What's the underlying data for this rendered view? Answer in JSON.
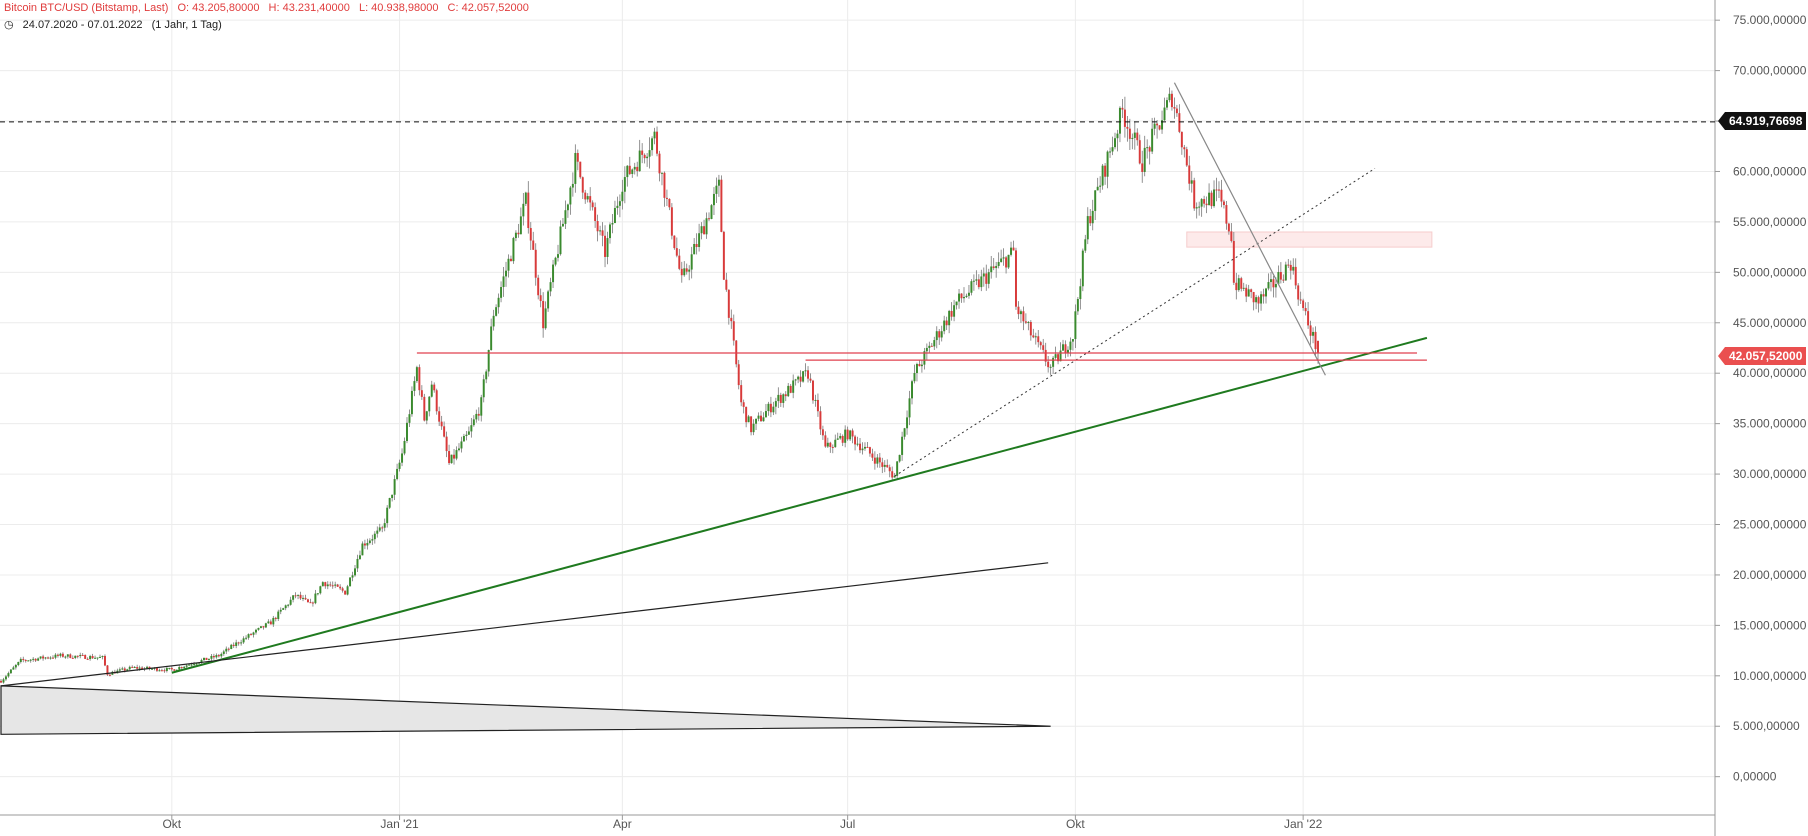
{
  "header": {
    "symbol_label": "Bitcoin BTC/USD (Bitstamp, Last)",
    "open": "O: 43.205,80000",
    "high": "H: 43.231,40000",
    "low": "L: 40.938,98000",
    "close": "C: 42.057,52000",
    "range": "24.07.2020 - 07.01.2022",
    "period": "(1 Jahr, 1 Tag)"
  },
  "price_tags": {
    "dashed_level": "64.919,76698",
    "last_price": "42.057,52000"
  },
  "colors": {
    "up_candle": "#3a8a2e",
    "down_candle": "#d83a3a",
    "support_line": "#1f7a1f",
    "horizontal_levels": "#e0404f",
    "grid": "#ececec"
  },
  "chart_data": {
    "type": "candlestick",
    "symbol": "Bitcoin BTC/USD (Bitstamp, Last)",
    "interval": "1 Tag",
    "x_range": [
      "2020-07-24",
      "2022-01-07"
    ],
    "x_ticks": [
      {
        "date": "2020-10-01",
        "label": "Okt"
      },
      {
        "date": "2021-01-01",
        "label": "Jan '21"
      },
      {
        "date": "2021-04-01",
        "label": "Apr"
      },
      {
        "date": "2021-07-01",
        "label": "Jul"
      },
      {
        "date": "2021-10-01",
        "label": "Okt"
      },
      {
        "date": "2022-01-01",
        "label": "Jan '22"
      }
    ],
    "ylim": [
      -3800,
      77000
    ],
    "y_ticks": [
      {
        "value": 0,
        "label": "0,00000"
      },
      {
        "value": 5000,
        "label": "5.000,00000"
      },
      {
        "value": 10000,
        "label": "10.000,00000"
      },
      {
        "value": 15000,
        "label": "15.000,00000"
      },
      {
        "value": 20000,
        "label": "20.000,00000"
      },
      {
        "value": 25000,
        "label": "25.000,00000"
      },
      {
        "value": 30000,
        "label": "30.000,00000"
      },
      {
        "value": 35000,
        "label": "35.000,00000"
      },
      {
        "value": 40000,
        "label": "40.000,00000"
      },
      {
        "value": 45000,
        "label": "45.000,00000"
      },
      {
        "value": 50000,
        "label": "50.000,00000"
      },
      {
        "value": 55000,
        "label": "55.000,00000"
      },
      {
        "value": 60000,
        "label": "60.000,00000"
      },
      {
        "value": 65000,
        "label": "65.000,00000"
      },
      {
        "value": 70000,
        "label": "70.000,00000"
      },
      {
        "value": 75000,
        "label": "75.000,00000"
      }
    ],
    "last_bar": {
      "open": 43205.8,
      "high": 43231.4,
      "low": 40938.98,
      "close": 42057.52
    },
    "price_path": [
      [
        "2020-07-24",
        9500
      ],
      [
        "2020-08-01",
        11500
      ],
      [
        "2020-08-17",
        12000
      ],
      [
        "2020-09-03",
        11800
      ],
      [
        "2020-09-05",
        10200
      ],
      [
        "2020-09-15",
        10800
      ],
      [
        "2020-10-01",
        10600
      ],
      [
        "2020-10-10",
        11300
      ],
      [
        "2020-10-20",
        12000
      ],
      [
        "2020-10-27",
        13200
      ],
      [
        "2020-11-10",
        15300
      ],
      [
        "2020-11-20",
        18000
      ],
      [
        "2020-11-26",
        17000
      ],
      [
        "2020-12-01",
        19300
      ],
      [
        "2020-12-10",
        18300
      ],
      [
        "2020-12-17",
        23000
      ],
      [
        "2020-12-25",
        24500
      ],
      [
        "2021-01-02",
        32000
      ],
      [
        "2021-01-08",
        40500
      ],
      [
        "2021-01-11",
        35500
      ],
      [
        "2021-01-14",
        39000
      ],
      [
        "2021-01-21",
        31000
      ],
      [
        "2021-01-29",
        34000
      ],
      [
        "2021-02-03",
        37000
      ],
      [
        "2021-02-08",
        46000
      ],
      [
        "2021-02-21",
        57000
      ],
      [
        "2021-02-28",
        45000
      ],
      [
        "2021-03-13",
        61000
      ],
      [
        "2021-03-25",
        52000
      ],
      [
        "2021-04-01",
        59000
      ],
      [
        "2021-04-14",
        63500
      ],
      [
        "2021-04-25",
        49000
      ],
      [
        "2021-05-10",
        58500
      ],
      [
        "2021-05-12",
        50000
      ],
      [
        "2021-05-19",
        37000
      ],
      [
        "2021-05-23",
        34500
      ],
      [
        "2021-06-01",
        37000
      ],
      [
        "2021-06-15",
        40000
      ],
      [
        "2021-06-22",
        32500
      ],
      [
        "2021-07-01",
        34000
      ],
      [
        "2021-07-20",
        29800
      ],
      [
        "2021-07-28",
        40000
      ],
      [
        "2021-08-14",
        47000
      ],
      [
        "2021-09-06",
        52000
      ],
      [
        "2021-09-07",
        46500
      ],
      [
        "2021-09-21",
        40500
      ],
      [
        "2021-09-30",
        43800
      ],
      [
        "2021-10-06",
        55000
      ],
      [
        "2021-10-20",
        66000
      ],
      [
        "2021-10-28",
        61000
      ],
      [
        "2021-11-09",
        67500
      ],
      [
        "2021-11-12",
        64500
      ],
      [
        "2021-11-18",
        57000
      ],
      [
        "2021-11-28",
        57500
      ],
      [
        "2021-12-03",
        53700
      ],
      [
        "2021-12-04",
        49000
      ],
      [
        "2021-12-14",
        47000
      ],
      [
        "2021-12-27",
        51000
      ],
      [
        "2021-12-31",
        47000
      ],
      [
        "2022-01-05",
        43500
      ],
      [
        "2022-01-07",
        42057.52
      ]
    ],
    "drawings": [
      {
        "kind": "horizontal",
        "style": "dashed",
        "color": "#111111",
        "value": 64919.76698
      },
      {
        "kind": "segment",
        "color": "#1f7a1f",
        "from": [
          "2020-10-01",
          10300
        ],
        "to": [
          "2022-02-20",
          43500
        ]
      },
      {
        "kind": "segment",
        "color": "#222222",
        "from": [
          "2020-07-24",
          9000
        ],
        "to": [
          "2021-09-20",
          21200
        ]
      },
      {
        "kind": "segment",
        "style": "dotted",
        "color": "#333333",
        "from": [
          "2021-07-20",
          29800
        ],
        "to": [
          "2022-01-30",
          60300
        ]
      },
      {
        "kind": "segment",
        "color": "#888888",
        "from": [
          "2021-11-10",
          68800
        ],
        "to": [
          "2022-01-10",
          39800
        ]
      },
      {
        "kind": "segment",
        "color": "#e0404f",
        "from": [
          "2021-01-08",
          42000
        ],
        "to": [
          "2022-02-16",
          42000
        ]
      },
      {
        "kind": "segment",
        "color": "#e0404f",
        "from": [
          "2021-06-14",
          41300
        ],
        "to": [
          "2022-02-20",
          41300
        ]
      },
      {
        "kind": "triangle",
        "color": "#222222",
        "fill": "#e6e6e6",
        "points": [
          [
            "2020-07-24",
            9000
          ],
          [
            "2021-09-21",
            5000
          ],
          [
            "2020-07-24",
            4200
          ]
        ]
      }
    ],
    "zones": [
      {
        "from": [
          "2021-11-15",
          54000
        ],
        "to": [
          "2022-02-22",
          52500
        ],
        "color": "#fdeaea"
      }
    ]
  }
}
